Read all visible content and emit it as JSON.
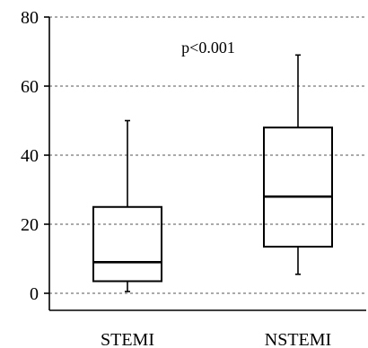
{
  "chart_data": {
    "type": "box",
    "title": "",
    "xlabel": "",
    "ylabel": "",
    "ylim": [
      0,
      80
    ],
    "yticks": [
      0,
      20,
      40,
      60,
      80
    ],
    "grid": true,
    "categories": [
      "STEMI",
      "NSTEMI"
    ],
    "boxes": [
      {
        "category": "STEMI",
        "whisker_low": 0.5,
        "q1": 3.5,
        "median": 9,
        "q3": 25,
        "whisker_high": 50
      },
      {
        "category": "NSTEMI",
        "whisker_low": 5.5,
        "q1": 13.5,
        "median": 28,
        "q3": 48,
        "whisker_high": 69
      }
    ],
    "annotations": [
      {
        "text": "p<0.001"
      }
    ]
  }
}
